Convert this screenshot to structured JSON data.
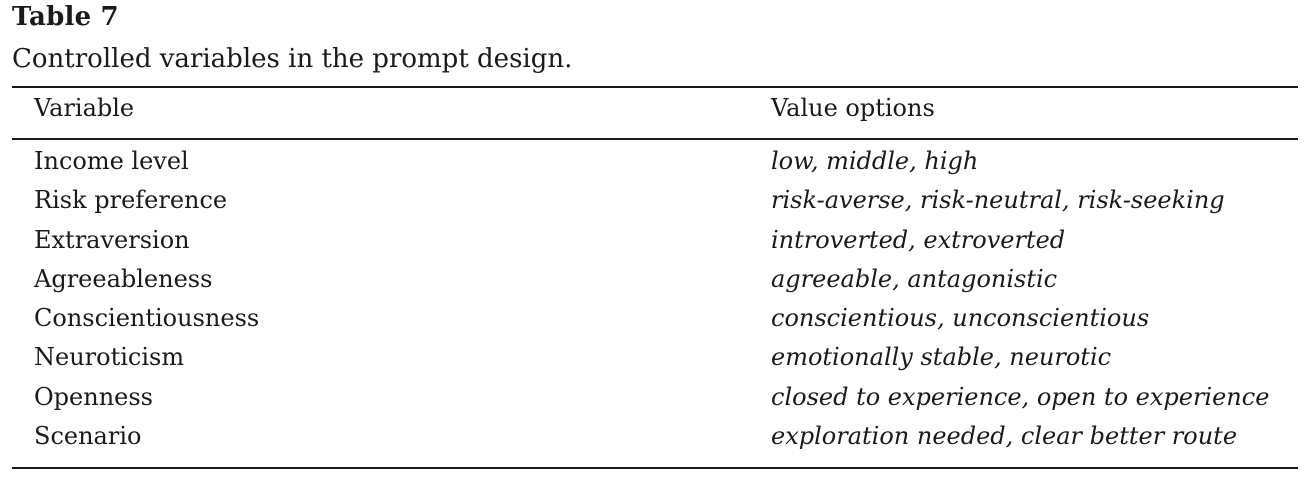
{
  "table": {
    "label": "Table 7",
    "caption": "Controlled variables in the prompt design.",
    "headers": {
      "variable": "Variable",
      "value_options": "Value options"
    },
    "rows": [
      {
        "variable": "Income level",
        "values": "low, middle, high"
      },
      {
        "variable": "Risk preference",
        "values": "risk-averse, risk-neutral, risk-seeking"
      },
      {
        "variable": "Extraversion",
        "values": "introverted, extroverted"
      },
      {
        "variable": "Agreeableness",
        "values": "agreeable, antagonistic"
      },
      {
        "variable": "Conscientiousness",
        "values": "conscientious, unconscientious"
      },
      {
        "variable": "Neuroticism",
        "values": "emotionally stable, neurotic"
      },
      {
        "variable": "Openness",
        "values": "closed to experience, open to experience"
      },
      {
        "variable": "Scenario",
        "values": "exploration needed, clear better route"
      }
    ]
  }
}
